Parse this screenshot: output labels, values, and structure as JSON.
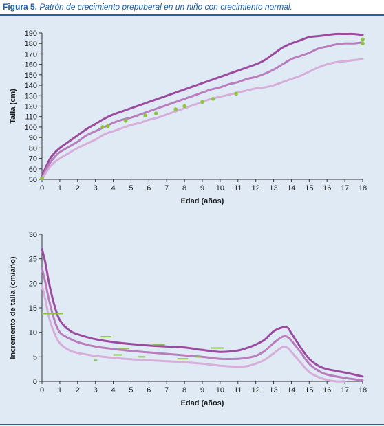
{
  "figure": {
    "label": "Figura 5.",
    "caption": "Patrón de crecimiento prepuberal en un niño con crecimiento normal."
  },
  "colors": {
    "caption_blue": "#1f62a8",
    "panel_bg": "#dfeaf5",
    "upper_curve": "#9b4a9e",
    "middle_curve": "#b97cbd",
    "lower_curve": "#d6aed9",
    "patient": "#8cc43f"
  },
  "chart_data": [
    {
      "type": "line",
      "title": "",
      "xlabel": "Edad (años)",
      "ylabel": "Talla (cm)",
      "xlim": [
        0,
        18
      ],
      "ylim": [
        50,
        190
      ],
      "xticks": [
        0,
        1,
        2,
        3,
        4,
        5,
        6,
        7,
        8,
        9,
        10,
        11,
        12,
        13,
        14,
        15,
        16,
        17,
        18
      ],
      "yticks": [
        50,
        60,
        70,
        80,
        90,
        100,
        110,
        120,
        130,
        140,
        150,
        160,
        170,
        180,
        190
      ],
      "grid": false,
      "series": [
        {
          "role": "upper",
          "x": [
            0,
            0.25,
            0.5,
            0.75,
            1,
            1.5,
            2,
            2.5,
            3,
            3.5,
            4,
            4.5,
            5,
            5.5,
            6,
            6.5,
            7,
            7.5,
            8,
            8.5,
            9,
            9.5,
            10,
            10.5,
            11,
            11.5,
            12,
            12.5,
            13,
            13.5,
            14,
            14.5,
            15,
            15.5,
            16,
            16.5,
            17,
            17.5,
            18
          ],
          "y": [
            53,
            63,
            71,
            76,
            80,
            86,
            92,
            98,
            103,
            108,
            112,
            115,
            118,
            121,
            124,
            127,
            130,
            133,
            136,
            139,
            142,
            145,
            148,
            151,
            154,
            157,
            160,
            164,
            170,
            176,
            180,
            183,
            186,
            187,
            188,
            189,
            189,
            189,
            188
          ]
        },
        {
          "role": "middle",
          "x": [
            0,
            0.25,
            0.5,
            0.75,
            1,
            1.5,
            2,
            2.5,
            3,
            3.5,
            4,
            4.5,
            5,
            5.5,
            6,
            6.5,
            7,
            7.5,
            8,
            8.5,
            9,
            9.5,
            10,
            10.5,
            11,
            11.5,
            12,
            12.5,
            13,
            13.5,
            14,
            14.5,
            15,
            15.5,
            16,
            16.5,
            17,
            17.5,
            18
          ],
          "y": [
            51,
            60,
            67,
            72,
            76,
            81,
            86,
            92,
            96,
            100,
            104,
            107,
            109,
            112,
            115,
            118,
            121,
            124,
            127,
            130,
            133,
            136,
            138,
            141,
            143,
            146,
            148,
            151,
            155,
            160,
            165,
            168,
            171,
            175,
            177,
            179,
            180,
            180,
            181
          ]
        },
        {
          "role": "lower",
          "x": [
            0,
            0.25,
            0.5,
            0.75,
            1,
            1.5,
            2,
            2.5,
            3,
            3.5,
            4,
            4.5,
            5,
            5.5,
            6,
            6.5,
            7,
            7.5,
            8,
            8.5,
            9,
            9.5,
            10,
            10.5,
            11,
            11.5,
            12,
            12.5,
            13,
            13.5,
            14,
            14.5,
            15,
            15.5,
            16,
            16.5,
            17,
            17.5,
            18
          ],
          "y": [
            50,
            57,
            63,
            67,
            70,
            75,
            80,
            84,
            88,
            93,
            96,
            99,
            102,
            104,
            107,
            109,
            112,
            115,
            118,
            121,
            124,
            127,
            129,
            131,
            133,
            135,
            137,
            138,
            140,
            143,
            146,
            149,
            153,
            157,
            160,
            162,
            163,
            164,
            165
          ]
        }
      ],
      "points": {
        "x": [
          0,
          3.4,
          3.7,
          4.7,
          5.8,
          6.4,
          7.5,
          8,
          9,
          9.6,
          10.9,
          18,
          18
        ],
        "y": [
          51,
          100,
          101,
          106,
          111,
          113,
          117,
          120,
          124,
          127,
          132,
          180,
          184
        ]
      }
    },
    {
      "type": "line",
      "title": "",
      "xlabel": "Edad (años)",
      "ylabel": "Incremento de talla (cm/año)",
      "xlim": [
        0,
        18
      ],
      "ylim": [
        0,
        30
      ],
      "xticks": [
        0,
        1,
        2,
        3,
        4,
        5,
        6,
        7,
        8,
        9,
        10,
        11,
        12,
        13,
        14,
        15,
        16,
        17,
        18
      ],
      "yticks": [
        0,
        5,
        10,
        15,
        20,
        25,
        30
      ],
      "grid": false,
      "series": [
        {
          "role": "upper",
          "x": [
            0,
            0.2,
            0.4,
            0.7,
            1,
            1.5,
            2,
            3,
            4,
            5,
            6,
            7,
            8,
            9,
            10,
            11,
            11.5,
            12,
            12.5,
            13,
            13.5,
            13.8,
            14,
            14.5,
            15,
            15.5,
            16,
            17,
            18
          ],
          "y": [
            27,
            24,
            20,
            15.5,
            12.5,
            10.5,
            9.6,
            8.6,
            8,
            7.6,
            7.3,
            7.1,
            6.9,
            6.4,
            6,
            6.3,
            6.8,
            7.5,
            8.5,
            10.2,
            11,
            10.9,
            9.8,
            7,
            4.6,
            3.2,
            2.5,
            1.8,
            1
          ]
        },
        {
          "role": "middle",
          "x": [
            0,
            0.2,
            0.4,
            0.7,
            1,
            1.5,
            2,
            3,
            4,
            5,
            6,
            7,
            8,
            9,
            10,
            11,
            11.5,
            12,
            12.5,
            13,
            13.5,
            13.8,
            14,
            14.5,
            15,
            15.5,
            16,
            17,
            18
          ],
          "y": [
            23,
            20,
            16.5,
            12.5,
            10,
            8.8,
            8,
            7.1,
            6.6,
            6.2,
            5.9,
            5.6,
            5.3,
            5,
            4.6,
            4.6,
            4.8,
            5.2,
            6.2,
            7.8,
            9.1,
            9,
            8.3,
            6,
            3.6,
            2.2,
            1.4,
            0.7,
            0.2
          ]
        },
        {
          "role": "lower",
          "x": [
            0,
            0.2,
            0.4,
            0.7,
            1,
            1.5,
            2,
            3,
            4,
            5,
            6,
            7,
            8,
            9,
            10,
            11,
            11.5,
            12,
            12.5,
            13,
            13.5,
            13.8,
            14,
            14.5,
            15,
            15.5,
            16,
            16.5,
            17
          ],
          "y": [
            19.5,
            16.5,
            13,
            9.8,
            7.8,
            6.4,
            5.8,
            5.2,
            4.8,
            4.5,
            4.3,
            4.1,
            3.9,
            3.6,
            3.2,
            3,
            3.1,
            3.6,
            4.4,
            5.7,
            7,
            6.8,
            6,
            3.9,
            1.9,
            0.9,
            0.3,
            0,
            0
          ]
        }
      ],
      "segments": [
        {
          "x0": 0,
          "x1": 1.2,
          "y": 13.8
        },
        {
          "x0": 2.9,
          "x1": 3.1,
          "y": 4.3
        },
        {
          "x0": 3.3,
          "x1": 3.9,
          "y": 9.1
        },
        {
          "x0": 4,
          "x1": 4.5,
          "y": 5.4
        },
        {
          "x0": 4.3,
          "x1": 4.9,
          "y": 6.7
        },
        {
          "x0": 5.4,
          "x1": 5.8,
          "y": 5.0
        },
        {
          "x0": 6.2,
          "x1": 6.9,
          "y": 7.5
        },
        {
          "x0": 7.6,
          "x1": 8.2,
          "y": 4.6
        },
        {
          "x0": 8.6,
          "x1": 8.9,
          "y": 5.0
        },
        {
          "x0": 9.5,
          "x1": 10.2,
          "y": 6.8
        }
      ]
    }
  ]
}
